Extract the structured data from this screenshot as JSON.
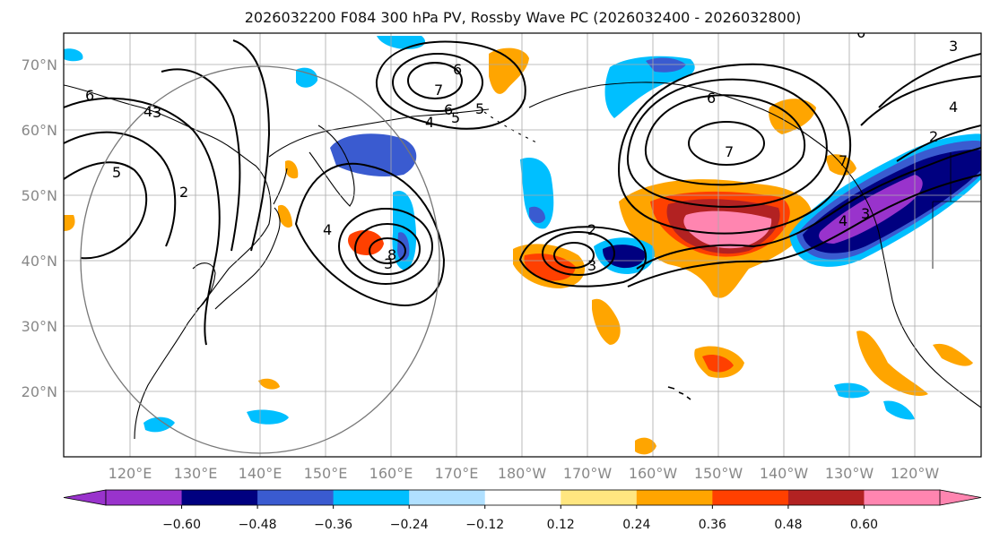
{
  "title": "2026032200 F084 300 hPa PV, Rossby Wave PC (2026032400 - 2026032800)",
  "map": {
    "lat_labels": [
      "70°N",
      "60°N",
      "50°N",
      "40°N",
      "30°N",
      "20°N"
    ],
    "lon_labels": [
      "120°E",
      "130°E",
      "140°E",
      "150°E",
      "160°E",
      "170°E",
      "180°W",
      "170°W",
      "160°W",
      "150°W",
      "140°W",
      "130°W",
      "120°W"
    ],
    "contour_labels": [
      "6",
      "4",
      "3",
      "5",
      "2",
      "6",
      "7",
      "5",
      "4",
      "6",
      "5",
      "6",
      "7",
      "4",
      "3",
      "8",
      "2",
      "3",
      "6",
      "7",
      "4",
      "3",
      "2",
      "4",
      "3"
    ]
  },
  "colorbar": {
    "tick_labels": [
      "−0.60",
      "−0.48",
      "−0.36",
      "−0.24",
      "−0.12",
      "0.12",
      "0.24",
      "0.36",
      "0.48",
      "0.60"
    ],
    "colors": [
      "#9933cc",
      "#000080",
      "#3a5bd0",
      "#00bfff",
      "#b0e0ff",
      "#ffffff",
      "#ffe680",
      "#ffa500",
      "#ff4000",
      "#b22222",
      "#ff85b0"
    ]
  }
}
